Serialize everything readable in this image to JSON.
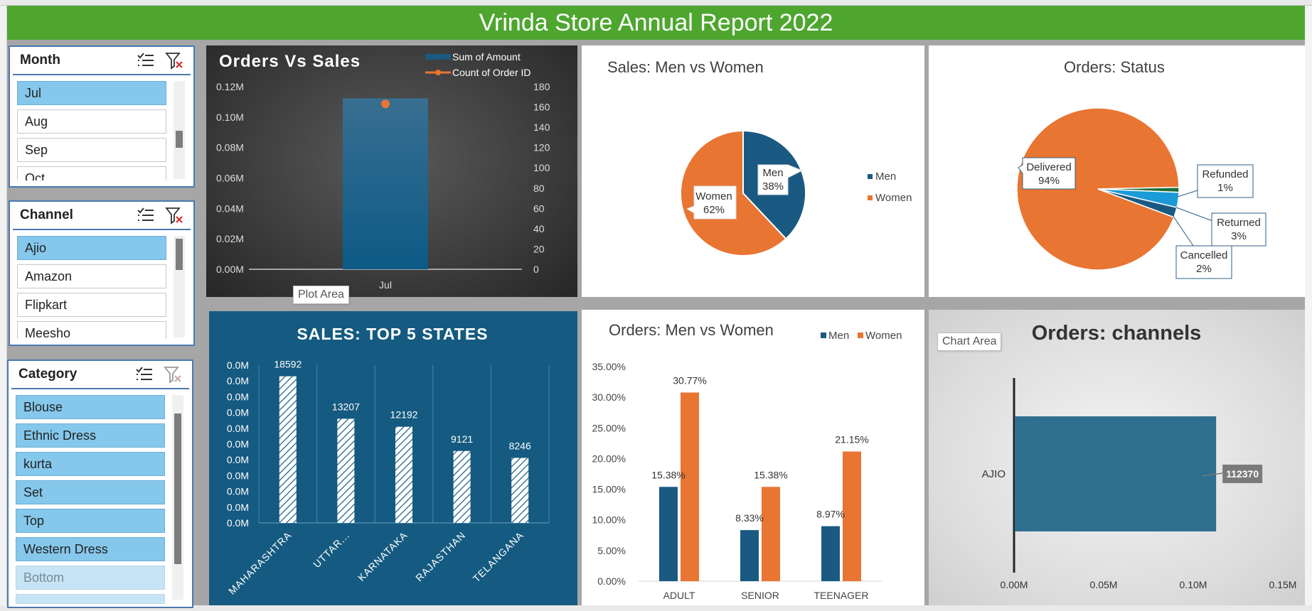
{
  "banner": {
    "title": "Vrinda Store Annual Report 2022"
  },
  "slicers": {
    "month": {
      "title": "Month",
      "items": [
        {
          "label": "Jul"
        },
        {
          "label": "Aug"
        },
        {
          "label": "Sep"
        },
        {
          "label": "Oct"
        }
      ],
      "selected": "Jul"
    },
    "channel": {
      "title": "Channel",
      "items": [
        {
          "label": "Ajio"
        },
        {
          "label": "Amazon"
        },
        {
          "label": "Flipkart"
        },
        {
          "label": "Meesho"
        }
      ],
      "selected": "Ajio"
    },
    "category": {
      "title": "Category",
      "items": [
        {
          "label": "Blouse"
        },
        {
          "label": "Ethnic Dress"
        },
        {
          "label": "kurta"
        },
        {
          "label": "Set"
        },
        {
          "label": "Top"
        },
        {
          "label": "Western Dress"
        },
        {
          "label": "Bottom"
        }
      ],
      "selected": [
        "Blouse",
        "Ethnic Dress",
        "kurta",
        "Set",
        "Top",
        "Western Dress"
      ],
      "dimmed": [
        "Bottom"
      ]
    }
  },
  "icons": {
    "multiselect": "multi-select-icon",
    "clear_filter": "clear-filter-icon"
  },
  "colors": {
    "banner": "#4ea62f",
    "navy": "#1a5a82",
    "orange": "#e87532",
    "slicer_selected": "#85c8ec"
  },
  "tooltips": {
    "plot_area": "Plot Area",
    "chart_area": "Chart Area"
  },
  "chart_data": [
    {
      "id": "orders_vs_sales",
      "type": "bar",
      "title": "Orders Vs Sales",
      "categories": [
        "Jul"
      ],
      "series": [
        {
          "name": "Sum of Amount",
          "values": [
            112370
          ],
          "axis": "left"
        },
        {
          "name": "Count of Order ID",
          "values": [
            163
          ],
          "axis": "right",
          "type": "line"
        }
      ],
      "y_ticks": [
        "0.00M",
        "0.02M",
        "0.04M",
        "0.06M",
        "0.08M",
        "0.10M",
        "0.12M"
      ],
      "y2_ticks": [
        "0",
        "20",
        "40",
        "60",
        "80",
        "100",
        "120",
        "140",
        "160",
        "180"
      ],
      "ylim": [
        0,
        120000
      ],
      "y2lim": [
        0,
        180
      ],
      "legend": "top-right"
    },
    {
      "id": "sales_men_women",
      "type": "pie",
      "title": "Sales: Men vs Women",
      "slices": [
        {
          "label": "Men",
          "value": 38,
          "display": "38%"
        },
        {
          "label": "Women",
          "value": 62,
          "display": "62%"
        }
      ],
      "legend": "right"
    },
    {
      "id": "orders_status",
      "type": "pie",
      "title": "Orders: Status",
      "slices": [
        {
          "label": "Delivered",
          "value": 94,
          "display": "94%"
        },
        {
          "label": "Refunded",
          "value": 1,
          "display": "1%"
        },
        {
          "label": "Returned",
          "value": 3,
          "display": "3%"
        },
        {
          "label": "Cancelled",
          "value": 2,
          "display": "2%"
        }
      ]
    },
    {
      "id": "top5_states",
      "type": "bar",
      "title": "SALES: TOP 5 STATES",
      "categories": [
        "MAHARASHTRA",
        "UTTAR...",
        "KARNATAKA",
        "RAJASTHAN",
        "TELANGANA"
      ],
      "values": [
        18592,
        13207,
        12192,
        9121,
        8246
      ],
      "y_ticks": [
        "0.0M",
        "0.0M",
        "0.0M",
        "0.0M",
        "0.0M",
        "0.0M",
        "0.0M",
        "0.0M",
        "0.0M",
        "0.0M",
        "0.0M"
      ],
      "ylim": [
        0,
        20000
      ]
    },
    {
      "id": "orders_men_women",
      "type": "bar",
      "title": "Orders: Men vs Women",
      "categories": [
        "ADULT",
        "SENIOR",
        "TEENAGER"
      ],
      "series": [
        {
          "name": "Men",
          "values": [
            15.38,
            8.33,
            8.97
          ],
          "labels": [
            "15.38%",
            "8.33%",
            "8.97%"
          ]
        },
        {
          "name": "Women",
          "values": [
            30.77,
            15.38,
            21.15
          ],
          "labels": [
            "30.77%",
            "15.38%",
            "21.15%"
          ]
        }
      ],
      "y_ticks": [
        "0.00%",
        "5.00%",
        "10.00%",
        "15.00%",
        "20.00%",
        "25.00%",
        "30.00%",
        "35.00%"
      ],
      "ylim": [
        0,
        35
      ],
      "legend": "top-right"
    },
    {
      "id": "orders_channels",
      "type": "bar",
      "orientation": "horizontal",
      "title": "Orders: channels",
      "categories": [
        "AJIO"
      ],
      "values": [
        112370
      ],
      "labels": [
        "112370"
      ],
      "x_ticks": [
        "0.00M",
        "0.05M",
        "0.10M",
        "0.15M"
      ],
      "xlim": [
        0,
        150000
      ]
    }
  ]
}
